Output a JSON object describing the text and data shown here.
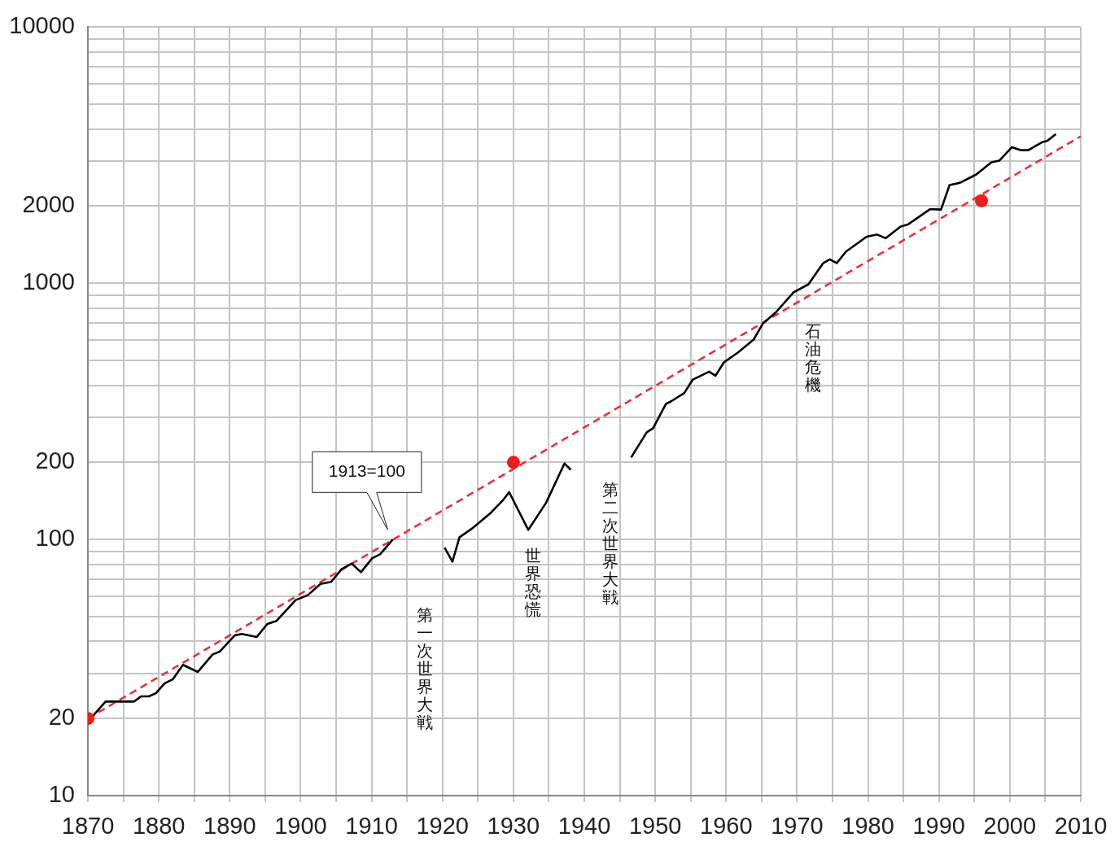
{
  "chart_data": {
    "type": "line",
    "xlim": [
      1870,
      2010
    ],
    "xticks": [
      1870,
      {
        "value": 1875,
        "label": null
      },
      1880,
      {
        "value": 1885,
        "label": null
      },
      1890,
      {
        "value": 1895,
        "label": null
      },
      1900,
      {
        "value": 1905,
        "label": null
      },
      1910,
      {
        "value": 1915,
        "label": null
      },
      1920,
      {
        "value": 1925,
        "label": null
      },
      1930,
      {
        "value": 1935,
        "label": null
      },
      1940,
      {
        "value": 1945,
        "label": null
      },
      1950,
      {
        "value": 1955,
        "label": null
      },
      1960,
      {
        "value": 1965,
        "label": null
      },
      1970,
      {
        "value": 1975,
        "label": null
      },
      1980,
      {
        "value": 1985,
        "label": null
      },
      1990,
      {
        "value": 1995,
        "label": null
      },
      2000,
      {
        "value": 2005,
        "label": null
      },
      2010
    ],
    "ylim": [
      10,
      10000
    ],
    "yticks": [
      10,
      20,
      {
        "value": 30,
        "label": null
      },
      {
        "value": 40,
        "label": null
      },
      {
        "value": 50,
        "label": null
      },
      {
        "value": 60,
        "label": null
      },
      {
        "value": 70,
        "label": null
      },
      {
        "value": 80,
        "label": null
      },
      {
        "value": 90,
        "label": null
      },
      100,
      200,
      {
        "value": 300,
        "label": null
      },
      {
        "value": 400,
        "label": null
      },
      {
        "value": 500,
        "label": null
      },
      {
        "value": 600,
        "label": null
      },
      {
        "value": 700,
        "label": null
      },
      {
        "value": 800,
        "label": null
      },
      {
        "value": 900,
        "label": null
      },
      1000,
      2000,
      {
        "value": 3000,
        "label": null
      },
      {
        "value": 4000,
        "label": null
      },
      {
        "value": 5000,
        "label": null
      },
      {
        "value": 6000,
        "label": null
      },
      {
        "value": 7000,
        "label": null
      },
      {
        "value": 8000,
        "label": null
      },
      {
        "value": 9000,
        "label": null
      },
      10000
    ],
    "log": true,
    "grid": true,
    "legend": false,
    "series": [
      {
        "color": "#000000",
        "marker": "none",
        "x": [
          1870.4,
          1872.5,
          1876.5,
          1877.5,
          1878.6,
          1879.6,
          1880.8,
          1882,
          1883.4,
          1885.5,
          1887.6,
          1888.6,
          1890.7,
          1891.7,
          1893.8,
          1895.3,
          1896.6,
          1899.3,
          1901,
          1902.8,
          1904.3,
          1905.8,
          1907.2,
          1908.5,
          1910.1,
          1911.2,
          1913,
          1916,
          1920.3,
          1921.4,
          1922.4,
          1924.3,
          1926.8,
          1928.5,
          1929.4,
          1932.1,
          1934.6,
          1937.2,
          1938.1,
          1942,
          1946.6,
          1948.8,
          1949.7,
          1951.5,
          1952.3,
          1954.1,
          1955.3,
          1957.6,
          1958.5,
          1959.7,
          1961.6,
          1963.9,
          1965.2,
          1967,
          1969.5,
          1971.6,
          1973.7,
          1974.6,
          1975.6,
          1976.9,
          1979.8,
          1981.3,
          1982.5,
          1984.6,
          1985.6,
          1988.8,
          1990.3,
          1991.5,
          1993,
          1995.3,
          1997.4,
          1998.5,
          2000.3,
          2001.5,
          2002.6,
          2004.5,
          2005.3,
          2006.5
        ],
        "values": [
          20,
          23.3,
          23.3,
          24.4,
          24.4,
          25.1,
          27.4,
          28.5,
          32.4,
          30.4,
          35.6,
          36.5,
          42.2,
          42.8,
          41.6,
          46.8,
          48.1,
          58,
          60.6,
          67.1,
          68.3,
          76.7,
          80.5,
          74.5,
          84.5,
          87.5,
          100,
          null,
          93,
          82,
          102,
          111,
          127,
          142,
          153,
          109,
          139,
          198,
          187,
          null,
          209,
          262,
          272,
          338,
          347,
          373,
          421,
          452,
          436,
          492,
          535,
          604,
          698,
          770,
          922,
          991,
          1200,
          1240,
          1200,
          1330,
          1520,
          1550,
          1500,
          1665,
          1695,
          1950,
          1940,
          2420,
          2470,
          2665,
          2970,
          3010,
          3400,
          3310,
          3310,
          3550,
          3600,
          3830
        ]
      },
      {
        "type": "line",
        "color": "#e8303a",
        "line_style": "dashed",
        "marker": "none",
        "x": [
          1870,
          2010
        ],
        "values": [
          20,
          3750
        ]
      },
      {
        "type": "scatter",
        "color": "#ee1c1c",
        "marker": "circle",
        "x": [
          1870,
          1930,
          1996
        ],
        "values": [
          20,
          200,
          2100
        ]
      }
    ],
    "annotations": [
      "1913=100",
      "第一次世界大戦",
      "世界恐慌",
      "第二次世界大戦",
      "石油危機"
    ]
  }
}
